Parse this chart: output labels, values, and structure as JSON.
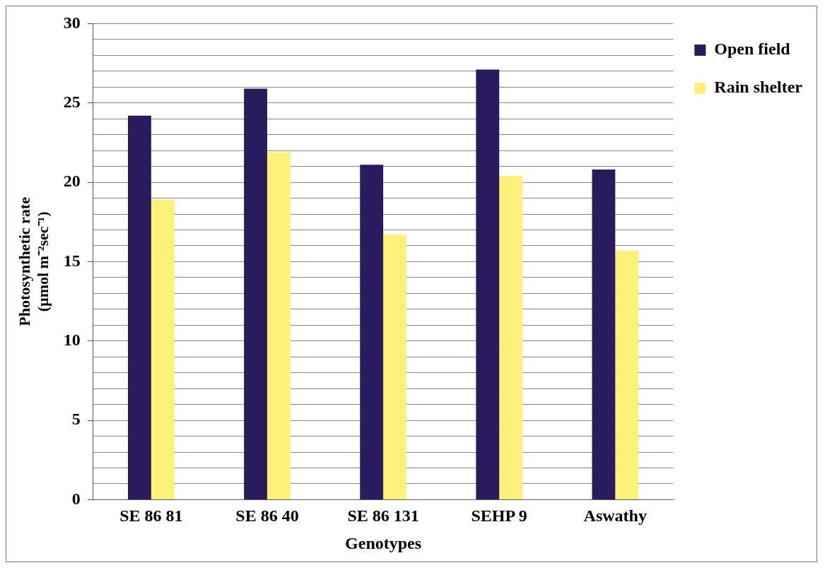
{
  "chart_data": {
    "type": "bar",
    "categories": [
      "SE 86 81",
      "SE 86 40",
      "SE 86 131",
      "SEHP 9",
      "Aswathy"
    ],
    "series": [
      {
        "name": "Open field",
        "color": "#2a1a5e",
        "values": [
          24.2,
          25.9,
          21.1,
          27.1,
          20.8
        ]
      },
      {
        "name": "Rain shelter",
        "color": "#fff07a",
        "values": [
          18.9,
          21.9,
          16.7,
          20.4,
          15.7
        ]
      }
    ],
    "xlabel": "Genotypes",
    "ylabel": "Photosynthetic rate\n(µmol m⁻²sec⁻¹)",
    "ylim": [
      0,
      30
    ],
    "yticks": [
      0,
      {
        "value": 1,
        "label": null
      },
      {
        "value": 2,
        "label": null
      },
      {
        "value": 3,
        "label": null
      },
      {
        "value": 4,
        "label": null
      },
      5,
      {
        "value": 6,
        "label": null
      },
      {
        "value": 7,
        "label": null
      },
      {
        "value": 8,
        "label": null
      },
      {
        "value": 9,
        "label": null
      },
      10,
      {
        "value": 11,
        "label": null
      },
      {
        "value": 12,
        "label": null
      },
      {
        "value": 13,
        "label": null
      },
      {
        "value": 14,
        "label": null
      },
      15,
      {
        "value": 16,
        "label": null
      },
      {
        "value": 17,
        "label": null
      },
      {
        "value": 18,
        "label": null
      },
      {
        "value": 19,
        "label": null
      },
      20,
      {
        "value": 21,
        "label": null
      },
      {
        "value": 22,
        "label": null
      },
      {
        "value": 23,
        "label": null
      },
      {
        "value": 24,
        "label": null
      },
      25,
      {
        "value": 26,
        "label": null
      },
      {
        "value": 27,
        "label": null
      },
      {
        "value": 28,
        "label": null
      },
      {
        "value": 29,
        "label": null
      },
      30
    ],
    "grid": "y",
    "legend": "top right"
  }
}
